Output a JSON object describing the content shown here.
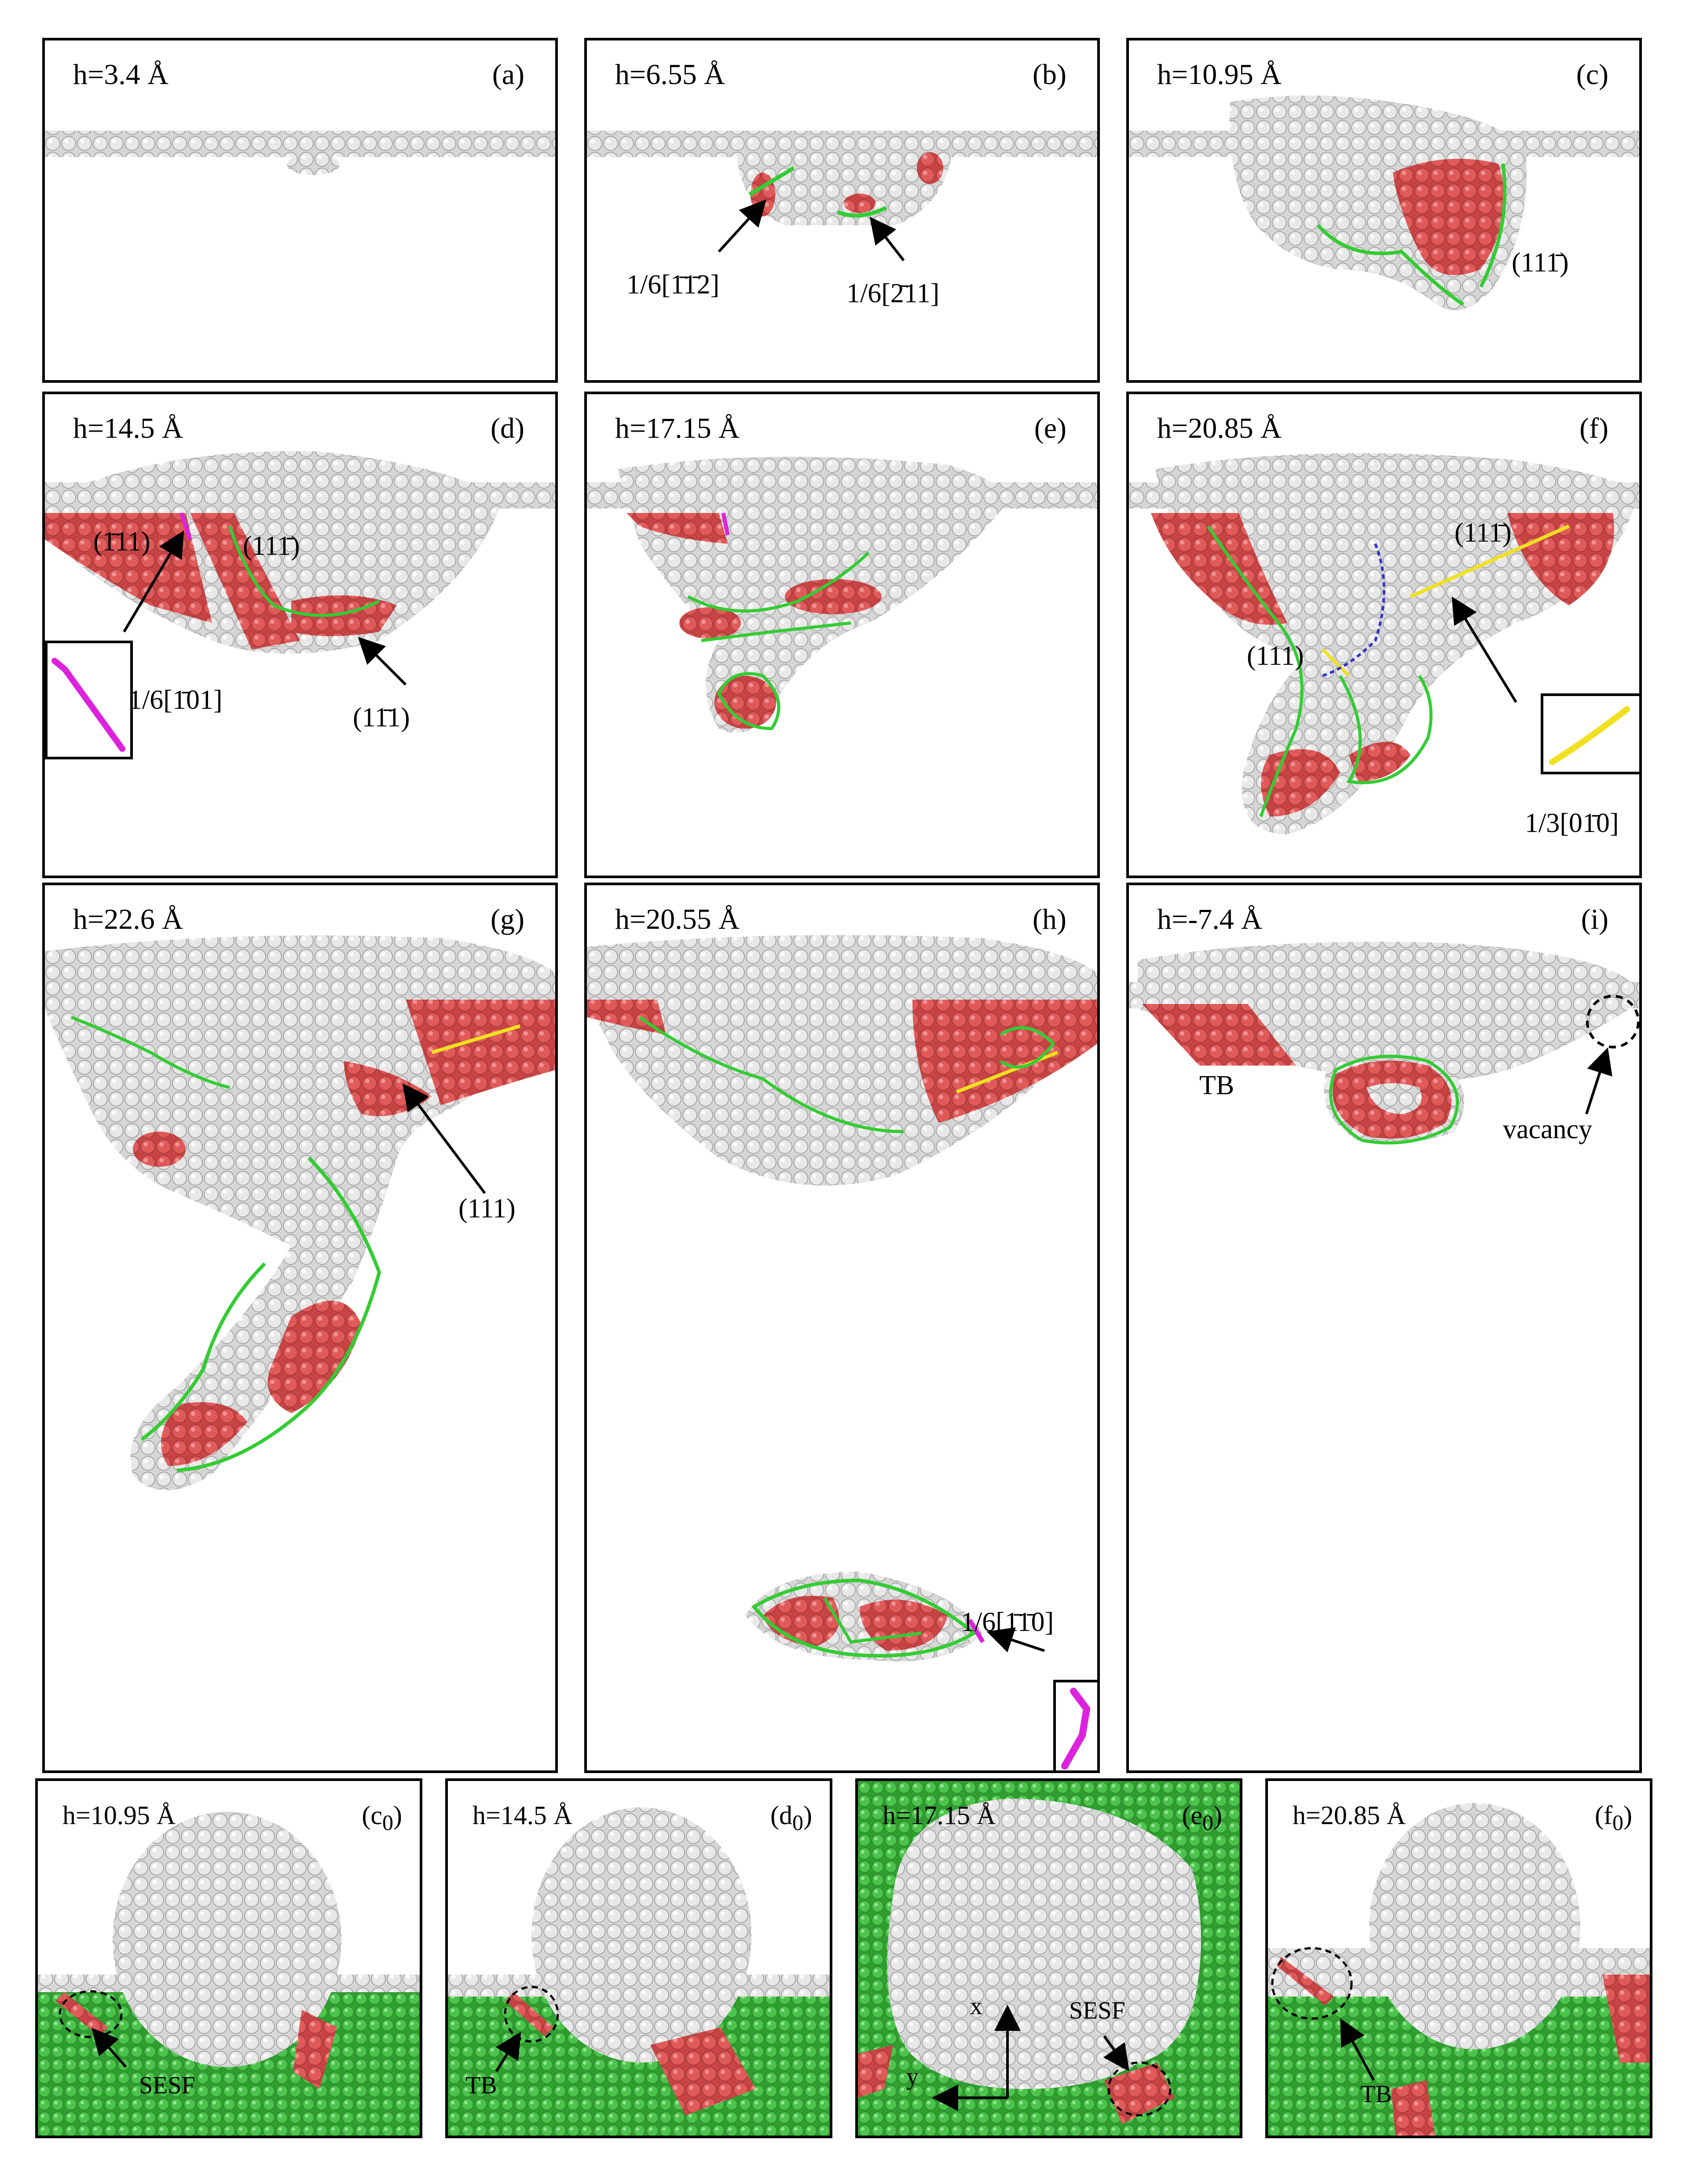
{
  "colors": {
    "atom": "#e4e4e4",
    "atom_edge": "#9c9c9c",
    "stacking_fault": "#e05555",
    "shockley_line": "#33cc33",
    "stair_rod_line": "#dd22dd",
    "hirth_line": "#f0e020",
    "other_line": "#3333cc",
    "fcc_green": "#47c047",
    "annotation": "#000000"
  },
  "panels": {
    "a": {
      "depth": "h=3.4 Å",
      "tag": "(a)"
    },
    "b": {
      "depth": "h=6.55 Å",
      "tag": "(b)",
      "labels": {
        "burgers_1": "1/6[1̄1̄2]",
        "burgers_2": "1/6[2̄11]"
      }
    },
    "c": {
      "depth": "h=10.95 Å",
      "tag": "(c)",
      "labels": {
        "plane": "(111̄)"
      }
    },
    "d": {
      "depth": "h=14.5 Å",
      "tag": "(d)",
      "labels": {
        "plane_1": "(1̄11)",
        "plane_2": "(111̄)",
        "burgers": "1/6[1̄01]",
        "plane_3": "(11̄1)"
      }
    },
    "e": {
      "depth": "h=17.15 Å",
      "tag": "(e)"
    },
    "f": {
      "depth": "h=20.85 Å",
      "tag": "(f)",
      "labels": {
        "plane_1": "(111̄)",
        "plane_2": "(111)",
        "burgers": "1/3[01̄0]"
      }
    },
    "g": {
      "depth": "h=22.6 Å",
      "tag": "(g)",
      "labels": {
        "plane": "(111)"
      }
    },
    "h": {
      "depth": "h=20.55 Å",
      "tag": "(h)",
      "labels": {
        "burgers": "1/6[1̄1̄0]"
      }
    },
    "i": {
      "depth": "h=-7.4 Å",
      "tag": "(i)",
      "labels": {
        "tb": "TB",
        "vacancy": "vacancy"
      }
    },
    "c0": {
      "depth": "h=10.95 Å",
      "tag": "(c",
      "sub": "0",
      "close": ")",
      "labels": {
        "fault": "SESF"
      }
    },
    "d0": {
      "depth": "h=14.5 Å",
      "tag": "(d",
      "sub": "0",
      "close": ")",
      "labels": {
        "fault": "TB"
      }
    },
    "e0": {
      "depth": "h=17.15 Å",
      "tag": "(e",
      "sub": "0",
      "close": ")",
      "labels": {
        "fault": "SESF",
        "axis_x": "x",
        "axis_y": "y"
      }
    },
    "f0": {
      "depth": "h=20.85 Å",
      "tag": "(f",
      "sub": "0",
      "close": ")",
      "labels": {
        "fault": "TB"
      }
    }
  }
}
